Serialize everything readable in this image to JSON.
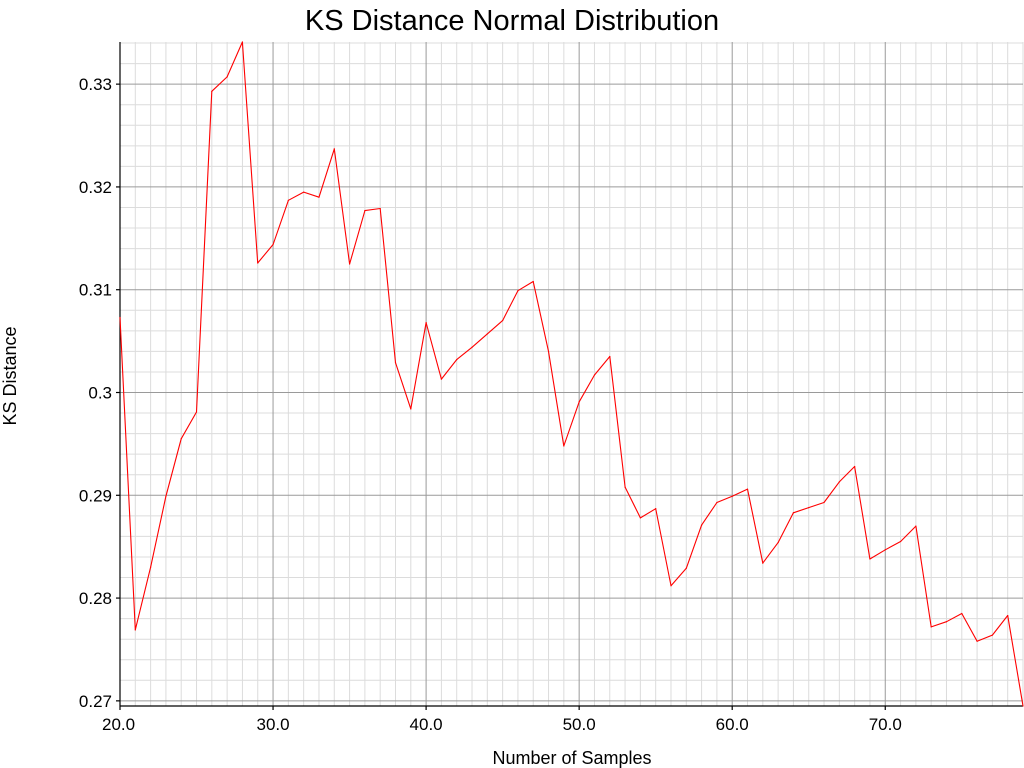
{
  "chart_data": {
    "type": "line",
    "title": "KS Distance Normal Distribution",
    "xlabel": "Number of Samples",
    "ylabel": "KS Distance",
    "xlim": [
      20,
      79
    ],
    "ylim": [
      0.2695,
      0.3341
    ],
    "x_ticks": [
      20,
      30,
      40,
      50,
      60,
      70
    ],
    "x_tick_labels": [
      "20.0",
      "30.0",
      "40.0",
      "50.0",
      "60.0",
      "70.0"
    ],
    "y_ticks": [
      0.27,
      0.28,
      0.29,
      0.3,
      0.31,
      0.32,
      0.33
    ],
    "y_tick_labels": [
      "0.27",
      "0.28",
      "0.29",
      "0.3",
      "0.31",
      "0.32",
      "0.33"
    ],
    "grid": true,
    "series": [
      {
        "name": "KS Distance",
        "color": "#ff0000",
        "x": [
          20,
          21,
          22,
          23,
          24,
          25,
          26,
          27,
          28,
          29,
          30,
          31,
          32,
          33,
          34,
          35,
          36,
          37,
          38,
          39,
          40,
          41,
          42,
          43,
          44,
          45,
          46,
          47,
          48,
          49,
          50,
          51,
          52,
          53,
          54,
          55,
          56,
          57,
          58,
          59,
          60,
          61,
          62,
          63,
          64,
          65,
          66,
          67,
          68,
          69,
          70,
          71,
          72,
          73,
          74,
          75,
          76,
          77,
          78,
          79
        ],
        "values": [
          0.3073,
          0.2769,
          0.283,
          0.2899,
          0.2955,
          0.2981,
          0.3293,
          0.3307,
          0.3341,
          0.3126,
          0.3144,
          0.3187,
          0.3195,
          0.319,
          0.3237,
          0.3125,
          0.3177,
          0.3179,
          0.3029,
          0.2984,
          0.3068,
          0.3013,
          0.3032,
          0.3044,
          0.3057,
          0.307,
          0.3099,
          0.3108,
          0.304,
          0.2948,
          0.2991,
          0.3017,
          0.3035,
          0.2908,
          0.2878,
          0.2887,
          0.2812,
          0.2829,
          0.2871,
          0.2893,
          0.2899,
          0.2906,
          0.2834,
          0.2854,
          0.2883,
          0.2888,
          0.2893,
          0.2913,
          0.2928,
          0.2838,
          0.2847,
          0.2855,
          0.287,
          0.2772,
          0.2777,
          0.2785,
          0.2758,
          0.2764,
          0.2783,
          0.2695
        ]
      }
    ]
  }
}
